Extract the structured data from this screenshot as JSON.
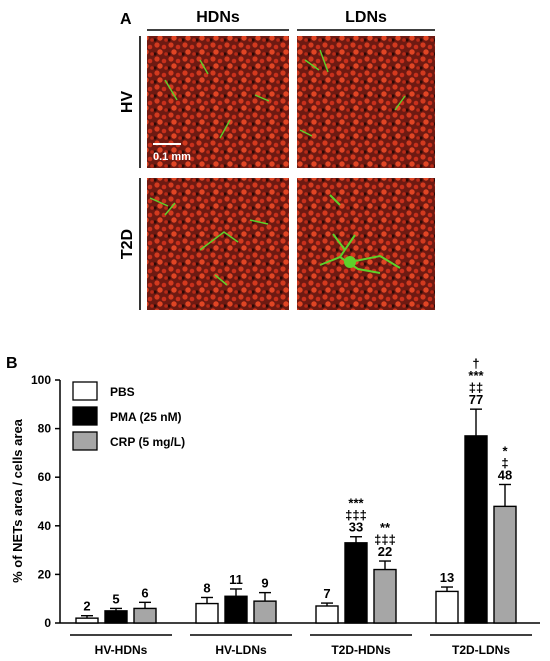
{
  "panel_a": {
    "label": "A",
    "columns": [
      "HDNs",
      "LDNs"
    ],
    "rows": [
      "HV",
      "T2D"
    ],
    "scale_bar": "0.1 mm"
  },
  "panel_b": {
    "label": "B"
  },
  "chart_data": {
    "type": "bar",
    "title": "",
    "ylabel": "% of NETs area / cells area",
    "xlabel": "",
    "ylim": [
      0,
      100
    ],
    "yticks": [
      0,
      20,
      40,
      60,
      80,
      100
    ],
    "grid": false,
    "legend_position": "top-left",
    "categories": [
      "HV-HDNs",
      "HV-LDNs",
      "T2D-HDNs",
      "T2D-LDNs"
    ],
    "series": [
      {
        "name": "PBS",
        "color": "#ffffff",
        "values": [
          2,
          8,
          7,
          13
        ],
        "errors": [
          1,
          2.5,
          1.2,
          1.8
        ],
        "labels": [
          "2",
          "8",
          "7",
          "13"
        ],
        "annotations": [
          [],
          [],
          [],
          []
        ]
      },
      {
        "name": "PMA (25 nM)",
        "color": "#000000",
        "values": [
          5,
          11,
          33,
          77
        ],
        "errors": [
          1,
          3,
          2.5,
          11
        ],
        "labels": [
          "5",
          "11",
          "33",
          "77"
        ],
        "annotations": [
          [],
          [],
          [
            "***",
            "‡‡‡"
          ],
          [
            "†",
            "***",
            "‡‡"
          ]
        ]
      },
      {
        "name": "CRP (5 mg/L)",
        "color": "#a6a6a6",
        "values": [
          6,
          9,
          22,
          48
        ],
        "errors": [
          2.5,
          3.5,
          3.5,
          9
        ],
        "labels": [
          "6",
          "9",
          "22",
          "48"
        ],
        "annotations": [
          [],
          [],
          [
            "**",
            "‡‡‡"
          ],
          [
            "*",
            "‡"
          ]
        ]
      }
    ]
  }
}
